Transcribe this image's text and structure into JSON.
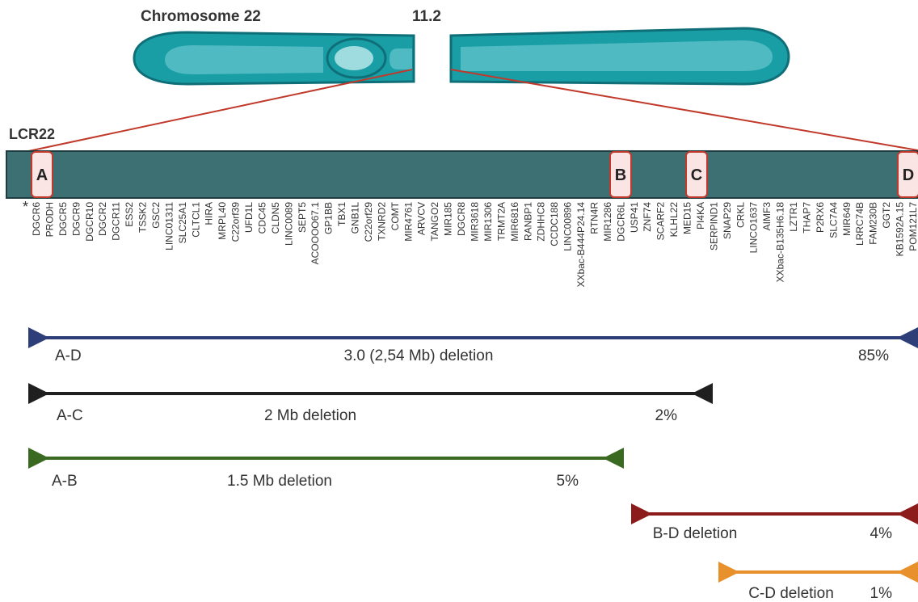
{
  "chromosome": {
    "title": "Chromosome 22",
    "band": "11.2",
    "colors": {
      "body": "#1a9ea6",
      "inner": "#4fbac2",
      "outline": "#0f6f78",
      "centromere": "#9fdce0"
    }
  },
  "region": {
    "label": "LCR22",
    "footnote_marker": "*",
    "bar_color": "#3d7073",
    "zoom_line_color": "#c0392b",
    "lcr_blocks": [
      {
        "id": "lcr-a",
        "label": "A"
      },
      {
        "id": "lcr-b",
        "label": "B"
      },
      {
        "id": "lcr-c",
        "label": "C"
      },
      {
        "id": "lcr-d",
        "label": "D"
      }
    ],
    "lcr_fill": "#fbe4e4",
    "lcr_stroke": "#c0392b"
  },
  "genes": [
    "DGCR6",
    "PRODH",
    "DGCR5",
    "DGCR9",
    "DGCR10",
    "DGCR2",
    "DGCR11",
    "ESS2",
    "TSSK2",
    "GSC2",
    "LINC01311",
    "SLC25A1",
    "CLTCL1",
    "HIRA",
    "MRPL40",
    "C22orf39",
    "UFD1L",
    "CDC45",
    "CLDN5",
    "LINC0089",
    "SEPT5",
    "ACOOOO67.1",
    "GP1BB",
    "TBX1",
    "GNB1L",
    "C22orf29",
    "TXNRD2",
    "COMT",
    "MIR4761",
    "ARVCV",
    "TANGO2",
    "MIR185",
    "DGCR8",
    "MIR3618",
    "MIR1306",
    "TRMT2A",
    "MIR6816",
    "RANBP1",
    "ZDHHC8",
    "CCDC188",
    "LINC00896",
    "XXbac-B444P24.14",
    "RTN4R",
    "MIR1286",
    "DGCR6L",
    "USP41",
    "ZNF74",
    "SCARF2",
    "KLHL22",
    "MED15",
    "PI4KA",
    "SERPIND1",
    "SNAP29",
    "CRKL",
    "LINCO1637",
    "AIMF3",
    "XXbac-B135H6.18",
    "LZTR1",
    "THAP7",
    "P2RX6",
    "SLC7A4",
    "MIR649",
    "LRRC74B",
    "FAM230B",
    "GGT2",
    "KB1592A.15",
    "POM121L7"
  ],
  "deletions": [
    {
      "id": "ad",
      "name": "A-D",
      "description": "3.0 (2,54 Mb) deletion",
      "percent": "85%",
      "color": "#2e3e78"
    },
    {
      "id": "ac",
      "name": "A-C",
      "description": "2 Mb deletion",
      "percent": "2%",
      "color": "#1f1f1f"
    },
    {
      "id": "ab",
      "name": "A-B",
      "description": "1.5 Mb deletion",
      "percent": "5%",
      "color": "#3a6a22"
    },
    {
      "id": "bd",
      "name": "",
      "description": "B-D deletion",
      "percent": "4%",
      "color": "#8c1c1c"
    },
    {
      "id": "cd",
      "name": "",
      "description": "C-D deletion",
      "percent": "1%",
      "color": "#e8902c"
    }
  ]
}
